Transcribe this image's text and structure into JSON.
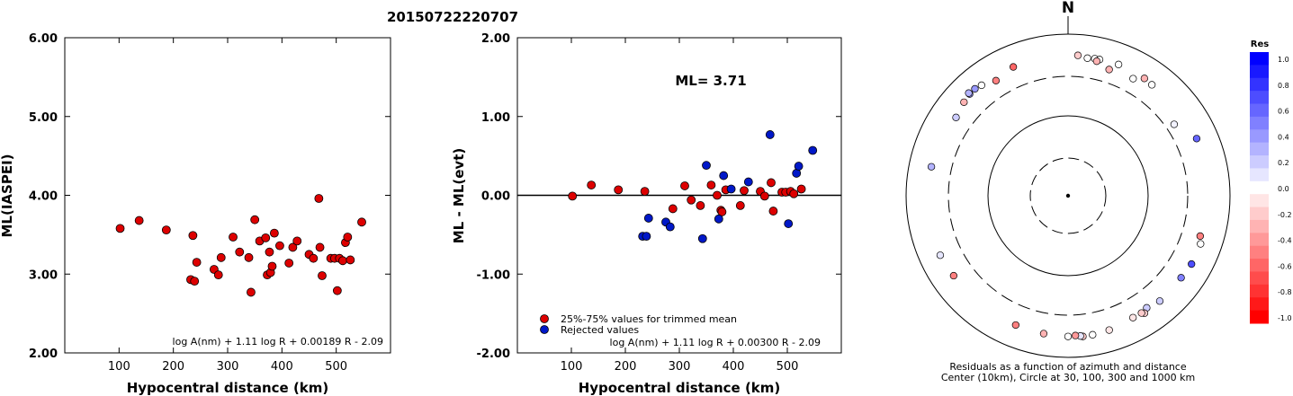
{
  "title": "20150722220707",
  "north_label": "N",
  "chart_data": [
    {
      "type": "scatter",
      "xlabel": "Hypocentral distance (km)",
      "ylabel": "ML(IASPEI)",
      "xlim": [
        0,
        600
      ],
      "ylim": [
        2.0,
        6.0
      ],
      "xticks": [
        100,
        200,
        300,
        400,
        500
      ],
      "yticks": [
        "2.00",
        "3.00",
        "4.00",
        "5.00",
        "6.00"
      ],
      "formula": "log A(nm) + 1.11 log R + 0.00189 R - 2.09",
      "marker_color": "#dd0000",
      "points": [
        [
          102,
          3.58
        ],
        [
          137,
          3.68
        ],
        [
          187,
          3.56
        ],
        [
          236,
          3.49
        ],
        [
          232,
          2.93
        ],
        [
          239,
          2.91
        ],
        [
          243,
          3.15
        ],
        [
          275,
          3.06
        ],
        [
          283,
          2.99
        ],
        [
          288,
          3.21
        ],
        [
          310,
          3.47
        ],
        [
          322,
          3.28
        ],
        [
          339,
          3.21
        ],
        [
          343,
          2.77
        ],
        [
          350,
          3.69
        ],
        [
          359,
          3.42
        ],
        [
          370,
          3.46
        ],
        [
          373,
          2.99
        ],
        [
          377,
          3.28
        ],
        [
          379,
          3.02
        ],
        [
          382,
          3.1
        ],
        [
          386,
          3.52
        ],
        [
          396,
          3.36
        ],
        [
          413,
          3.14
        ],
        [
          420,
          3.34
        ],
        [
          428,
          3.42
        ],
        [
          450,
          3.25
        ],
        [
          458,
          3.2
        ],
        [
          468,
          3.96
        ],
        [
          470,
          3.34
        ],
        [
          474,
          2.98
        ],
        [
          490,
          3.2
        ],
        [
          497,
          3.2
        ],
        [
          502,
          2.79
        ],
        [
          506,
          3.2
        ],
        [
          512,
          3.17
        ],
        [
          517,
          3.4
        ],
        [
          521,
          3.47
        ],
        [
          526,
          3.18
        ],
        [
          547,
          3.66
        ]
      ]
    },
    {
      "type": "scatter",
      "xlabel": "Hypocentral distance (km)",
      "ylabel": "ML - ML(evt)",
      "xlim": [
        0,
        600
      ],
      "ylim": [
        -2.0,
        2.0
      ],
      "xticks": [
        100,
        200,
        300,
        400,
        500
      ],
      "yticks": [
        "-2.00",
        "-1.00",
        "0.00",
        "1.00",
        "2.00"
      ],
      "annotation": "ML= 3.71",
      "formula": "log A(nm) + 1.11 log R + 0.00300 R - 2.09",
      "legend": [
        {
          "label": "25%-75% values for trimmed mean",
          "color": "#dd0000"
        },
        {
          "label": "Rejected values",
          "color": "#0018c8"
        }
      ],
      "series": [
        {
          "name": "25%-75% values for trimmed mean",
          "color": "#dd0000",
          "points": [
            [
              102,
              -0.01
            ],
            [
              137,
              0.13
            ],
            [
              187,
              0.07
            ],
            [
              236,
              0.05
            ],
            [
              288,
              -0.17
            ],
            [
              310,
              0.12
            ],
            [
              322,
              -0.06
            ],
            [
              339,
              -0.13
            ],
            [
              359,
              0.13
            ],
            [
              370,
              0.0
            ],
            [
              377,
              -0.19
            ],
            [
              379,
              -0.21
            ],
            [
              386,
              0.07
            ],
            [
              413,
              -0.13
            ],
            [
              420,
              0.06
            ],
            [
              450,
              0.05
            ],
            [
              458,
              -0.01
            ],
            [
              470,
              0.16
            ],
            [
              474,
              -0.2
            ],
            [
              490,
              0.04
            ],
            [
              497,
              0.04
            ],
            [
              506,
              0.05
            ],
            [
              512,
              0.02
            ],
            [
              526,
              0.08
            ]
          ]
        },
        {
          "name": "Rejected values",
          "color": "#0018c8",
          "points": [
            [
              232,
              -0.52
            ],
            [
              239,
              -0.52
            ],
            [
              243,
              -0.29
            ],
            [
              275,
              -0.34
            ],
            [
              283,
              -0.4
            ],
            [
              343,
              -0.55
            ],
            [
              350,
              0.38
            ],
            [
              373,
              -0.3
            ],
            [
              382,
              0.25
            ],
            [
              396,
              0.08
            ],
            [
              428,
              0.17
            ],
            [
              468,
              0.77
            ],
            [
              502,
              -0.36
            ],
            [
              517,
              0.28
            ],
            [
              521,
              0.37
            ],
            [
              547,
              0.57
            ]
          ]
        }
      ]
    },
    {
      "type": "scatter",
      "subtype": "polar-residuals",
      "caption_lines": [
        "Residuals as a function of azimuth and distance",
        "Center (10km), Circle at 30, 100, 300 and 1000 km"
      ],
      "rings_km": [
        30,
        100,
        300,
        1000
      ],
      "stations": [
        [
          4,
          551,
          -0.2
        ],
        [
          8,
          523,
          0.0
        ],
        [
          11,
          534,
          0.0
        ],
        [
          13,
          536,
          0.0
        ],
        [
          18,
          438,
          -0.3
        ],
        [
          12,
          503,
          -0.3
        ],
        [
          21,
          549,
          0.0
        ],
        [
          33,
          538,
          -0.3
        ],
        [
          29,
          453,
          0.0
        ],
        [
          37,
          524,
          0.0
        ],
        [
          56,
          380,
          0.05
        ],
        [
          66,
          547,
          0.6
        ],
        [
          107,
          508,
          -0.5
        ],
        [
          110,
          551,
          0.0
        ],
        [
          119,
          553,
          0.7
        ],
        [
          126,
          531,
          0.5
        ],
        [
          139,
          532,
          0.2
        ],
        [
          145,
          493,
          0.2
        ],
        [
          147,
          540,
          -0.2
        ],
        [
          148,
          514,
          -0.2
        ],
        [
          152,
          510,
          -0.1
        ],
        [
          163,
          547,
          -0.1
        ],
        [
          174,
          563,
          -0.2
        ],
        [
          170,
          558,
          0.0
        ],
        [
          175,
          552,
          0.1
        ],
        [
          177,
          539,
          -0.4
        ],
        [
          180,
          551,
          0.0
        ],
        [
          190,
          539,
          -0.3
        ],
        [
          202,
          531,
          -0.5
        ],
        [
          235,
          530,
          -0.5
        ],
        [
          245,
          551,
          0.1
        ],
        [
          282,
          531,
          0.3
        ],
        [
          305,
          488,
          0.2
        ],
        [
          312,
          536,
          -0.3
        ],
        [
          316,
          562,
          0.4
        ],
        [
          316,
          583,
          0.3
        ],
        [
          319,
          566,
          0.4
        ],
        [
          322,
          543,
          0.0
        ],
        [
          328,
          478,
          -0.5
        ],
        [
          337,
          538,
          -0.6
        ]
      ]
    }
  ],
  "colorbar": {
    "title": "Res",
    "labels": [
      "1.0",
      "0.8",
      "0.6",
      "0.4",
      "0.2",
      "0.0",
      "-0.2",
      "-0.4",
      "-0.6",
      "-0.8",
      "-1.0"
    ]
  }
}
